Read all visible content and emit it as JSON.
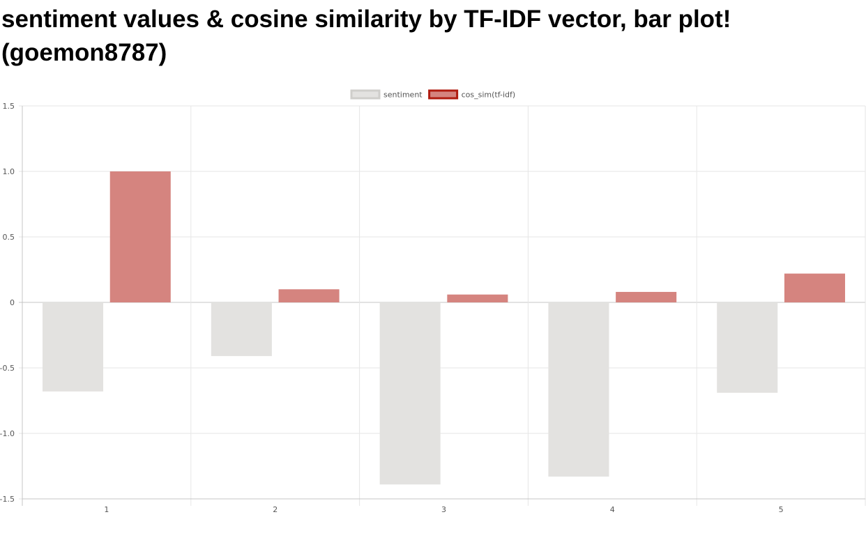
{
  "title": "sentiment values & cosine similarity by TF-IDF vector, bar plot! (goemon8787)",
  "chart_data": {
    "type": "bar",
    "title": "sentiment values & cosine similarity by TF-IDF vector, bar plot! (goemon8787)",
    "xlabel": "",
    "ylabel": "",
    "categories": [
      "1",
      "2",
      "3",
      "4",
      "5"
    ],
    "series": [
      {
        "name": "sentiment",
        "values": [
          -0.68,
          -0.41,
          -1.39,
          -1.33,
          -0.69
        ],
        "fill": "#e3e2e0",
        "border": "#cfcecb"
      },
      {
        "name": "cos_sim(tf-idf)",
        "values": [
          1.0,
          0.1,
          0.06,
          0.08,
          0.22
        ],
        "fill": "#d5847f",
        "border": "#b01c10"
      }
    ],
    "ylim": [
      -1.5,
      1.5
    ],
    "yticks": [
      1.5,
      1.0,
      0.5,
      0,
      -0.5,
      -1.0,
      -1.5
    ],
    "ytick_labels": [
      "1.5",
      "1.0",
      "0.5",
      "0",
      "-0.5",
      "-1.0",
      "-1.5"
    ],
    "grid": true,
    "legend_position": "top-center"
  }
}
